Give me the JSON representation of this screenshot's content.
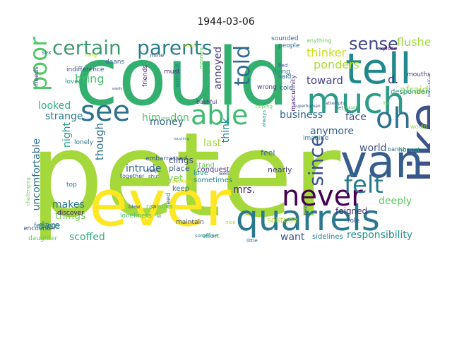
{
  "title": "1944-03-06",
  "palette": "viridis",
  "words": [
    {
      "text": "peter",
      "color": "#a5d83a"
    },
    {
      "text": "could",
      "color": "#33b06f"
    },
    {
      "text": "ever",
      "color": "#fde725"
    },
    {
      "text": "tell",
      "color": "#23888e"
    },
    {
      "text": "much",
      "color": "#2d9b87"
    },
    {
      "text": "quarrels",
      "color": "#2a788e"
    },
    {
      "text": "van",
      "color": "#355e8d"
    },
    {
      "text": "see",
      "color": "#2c728e"
    },
    {
      "text": "able",
      "color": "#3fbc73"
    },
    {
      "text": "like",
      "color": "#3b528b"
    },
    {
      "text": "certain",
      "color": "#3f9a70"
    },
    {
      "text": "parents",
      "color": "#2a7e8e"
    },
    {
      "text": "poor",
      "color": "#52c569"
    },
    {
      "text": "never",
      "color": "#440154"
    },
    {
      "text": "oh",
      "color": "#2c728e"
    },
    {
      "text": "felt",
      "color": "#29798e"
    },
    {
      "text": "since",
      "color": "#3b528b"
    },
    {
      "text": "told",
      "color": "#2f6b8e"
    },
    {
      "text": "sense",
      "color": "#3e4989"
    },
    {
      "text": "flushed",
      "color": "#9fda3a"
    },
    {
      "text": "thinker",
      "color": "#c8e020"
    },
    {
      "text": "ponders",
      "color": "#addc30"
    },
    {
      "text": "toward",
      "color": "#424086"
    },
    {
      "text": "afraid",
      "color": "#9bd93c"
    },
    {
      "text": "d.",
      "color": "#453882"
    },
    {
      "text": "business",
      "color": "#31668e"
    },
    {
      "text": "anymore",
      "color": "#34618d"
    },
    {
      "text": "face",
      "color": "#3b528b"
    },
    {
      "text": "annoyed",
      "color": "#48387c"
    },
    {
      "text": "bring",
      "color": "#4ac16d"
    },
    {
      "text": "looked",
      "color": "#2ab07f"
    },
    {
      "text": "strange",
      "color": "#2a768e"
    },
    {
      "text": "him—don",
      "color": "#52c569"
    },
    {
      "text": "money",
      "color": "#34618d"
    },
    {
      "text": "last",
      "color": "#9dd93b"
    },
    {
      "text": "think",
      "color": "#24868e"
    },
    {
      "text": "world",
      "color": "#3b528b"
    },
    {
      "text": "intrude",
      "color": "#31668e"
    },
    {
      "text": "though",
      "color": "#2e6e8e"
    },
    {
      "text": "night",
      "color": "#1f9e89"
    },
    {
      "text": "uncomfortable",
      "color": "#2e6e8e"
    },
    {
      "text": "mrs.",
      "color": "#482576"
    },
    {
      "text": "yet",
      "color": "#7ad151"
    },
    {
      "text": "deeply",
      "color": "#5ec962"
    },
    {
      "text": "makes",
      "color": "#2c728e"
    },
    {
      "text": "things",
      "color": "#6ece58"
    },
    {
      "text": "dare",
      "color": "#1fa187"
    },
    {
      "text": "scoffed",
      "color": "#2db27d"
    },
    {
      "text": "want",
      "color": "#3b528b"
    },
    {
      "text": "responsibility",
      "color": "#1f958b"
    },
    {
      "text": "clings",
      "color": "#3e4989"
    },
    {
      "text": "place",
      "color": "#365c8d"
    },
    {
      "text": "embarrassed",
      "color": "#3a538b"
    },
    {
      "text": "stand",
      "color": "#6ece58"
    },
    {
      "text": "love",
      "color": "#21918c"
    },
    {
      "text": "sometimes",
      "color": "#26828e"
    },
    {
      "text": "feel",
      "color": "#31688e"
    },
    {
      "text": "nearly",
      "color": "#433e85"
    },
    {
      "text": "conquest",
      "color": "#46327e"
    },
    {
      "text": "solitude",
      "color": "#b5de2b"
    },
    {
      "text": "feigned",
      "color": "#482878"
    },
    {
      "text": "sidelines",
      "color": "#26828e"
    },
    {
      "text": "keep",
      "color": "#31688e"
    },
    {
      "text": "maintain",
      "color": "#3e4989"
    },
    {
      "text": "loneliness",
      "color": "#4ac16d"
    },
    {
      "text": "effort",
      "color": "#2db27d"
    },
    {
      "text": "role",
      "color": "#3b528b"
    },
    {
      "text": "feelings",
      "color": "#2e6e8e"
    },
    {
      "text": "daughter",
      "color": "#5ec962"
    },
    {
      "text": "discover",
      "color": "#48186a"
    },
    {
      "text": "top",
      "color": "#2a788e"
    },
    {
      "text": "encounter",
      "color": "#3e4989"
    },
    {
      "text": "challenging",
      "color": "#6ece58"
    },
    {
      "text": "lonely",
      "color": "#2c728e"
    },
    {
      "text": "indifference",
      "color": "#3b528b"
    },
    {
      "text": "loved",
      "color": "#1fa187"
    },
    {
      "text": "needs",
      "color": "#3e4989"
    },
    {
      "text": "sex",
      "color": "#2a788e"
    },
    {
      "text": "long",
      "color": "#b5de2b"
    },
    {
      "text": "daans",
      "color": "#32658e"
    },
    {
      "text": "mine",
      "color": "#3b528b"
    },
    {
      "text": "friends",
      "color": "#481f70"
    },
    {
      "text": "must",
      "color": "#482475"
    },
    {
      "text": "without",
      "color": "#26828e"
    },
    {
      "text": "show",
      "color": "#dde318"
    },
    {
      "text": "meaning",
      "color": "#5ec962"
    },
    {
      "text": "masculinity",
      "color": "#482878"
    },
    {
      "text": "sounded",
      "color": "#31688e"
    },
    {
      "text": "people",
      "color": "#2e6e8e"
    },
    {
      "text": "anything",
      "color": "#6ece58"
    },
    {
      "text": "explode",
      "color": "#440154"
    },
    {
      "text": "mouths",
      "color": "#443983"
    },
    {
      "text": "beautiful",
      "color": "#3f4788"
    },
    {
      "text": "despondent",
      "color": "#21918c"
    },
    {
      "text": "said",
      "color": "#2c728e"
    },
    {
      "text": "cold",
      "color": "#31688e"
    },
    {
      "text": "dying",
      "color": "#2a788e"
    },
    {
      "text": "fled",
      "color": "#3b528b"
    },
    {
      "text": "wrong",
      "color": "#443983"
    },
    {
      "text": "always",
      "color": "#21918c"
    },
    {
      "text": "bashful",
      "color": "#46327e"
    },
    {
      "text": "superhuman",
      "color": "#3e4989"
    },
    {
      "text": "hoping",
      "color": "#6ece58"
    },
    {
      "text": "let",
      "color": "#2c728e"
    },
    {
      "text": "imagine",
      "color": "#2a788e"
    },
    {
      "text": "honest",
      "color": "#22a884"
    },
    {
      "text": "know",
      "color": "#31688e"
    },
    {
      "text": "would",
      "color": "#a5db36"
    },
    {
      "text": "next",
      "color": "#3b528b"
    },
    {
      "text": "banish",
      "color": "#2c728e"
    },
    {
      "text": "reason",
      "color": "#5ec962"
    },
    {
      "text": "live",
      "color": "#7ad151"
    },
    {
      "text": "attempts",
      "color": "#3b528b"
    },
    {
      "text": "someone",
      "color": "#2a788e"
    },
    {
      "text": "little",
      "color": "#31688e"
    },
    {
      "text": "nice",
      "color": "#9dd93b"
    },
    {
      "text": "well",
      "color": "#3e4989"
    },
    {
      "text": "need",
      "color": "#2c728e"
    },
    {
      "text": "ps",
      "color": "#471063"
    },
    {
      "text": "blew",
      "color": "#3b528b"
    },
    {
      "text": "raptures",
      "color": "#5ec962"
    },
    {
      "text": "shut",
      "color": "#31688e"
    },
    {
      "text": "help",
      "color": "#3e4989"
    },
    {
      "text": "together",
      "color": "#3b528b"
    },
    {
      "text": "touching",
      "color": "#2a788e"
    },
    {
      "text": "easily",
      "color": "#3e4989"
    },
    {
      "text": "nothing",
      "color": "#dde318"
    },
    {
      "text": "all",
      "color": "#2c728e"
    }
  ]
}
